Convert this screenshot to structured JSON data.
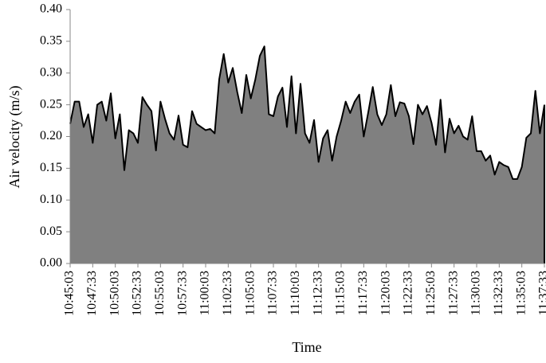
{
  "chart_data": {
    "type": "area",
    "x_label": "Time",
    "y_label": "Air velocity (m/s)",
    "categories": [
      "10:45:03",
      null,
      null,
      null,
      null,
      "10:47:33",
      null,
      null,
      null,
      null,
      "10:50:03",
      null,
      null,
      null,
      null,
      "10:52:33",
      null,
      null,
      null,
      null,
      "10:55:03",
      null,
      null,
      null,
      null,
      "10:57:33",
      null,
      null,
      null,
      null,
      "11:00:03",
      null,
      null,
      null,
      null,
      "11:02:33",
      null,
      null,
      null,
      null,
      "11:05:03",
      null,
      null,
      null,
      null,
      "11:07:33",
      null,
      null,
      null,
      null,
      "11:10:03",
      null,
      null,
      null,
      null,
      "11:12:33",
      null,
      null,
      null,
      null,
      "11:15:03",
      null,
      null,
      null,
      null,
      "11:17:33",
      null,
      null,
      null,
      null,
      "11:20:03",
      null,
      null,
      null,
      null,
      "11:22:33",
      null,
      null,
      null,
      null,
      "11:25:03",
      null,
      null,
      null,
      null,
      "11:27:33",
      null,
      null,
      null,
      null,
      "11:30:03",
      null,
      null,
      null,
      null,
      "11:32:33",
      null,
      null,
      null,
      null,
      "11:35:03",
      null,
      null,
      null,
      null,
      "11:37:33"
    ],
    "values": [
      0.22,
      0.255,
      0.255,
      0.215,
      0.235,
      0.19,
      0.25,
      0.255,
      0.225,
      0.268,
      0.197,
      0.235,
      0.147,
      0.21,
      0.205,
      0.19,
      0.262,
      0.25,
      0.24,
      0.178,
      0.255,
      0.228,
      0.205,
      0.195,
      0.233,
      0.187,
      0.183,
      0.24,
      0.22,
      0.215,
      0.21,
      0.212,
      0.205,
      0.29,
      0.33,
      0.285,
      0.308,
      0.27,
      0.237,
      0.297,
      0.26,
      0.29,
      0.327,
      0.342,
      0.235,
      0.232,
      0.263,
      0.277,
      0.215,
      0.295,
      0.205,
      0.283,
      0.205,
      0.19,
      0.226,
      0.16,
      0.197,
      0.21,
      0.162,
      0.2,
      0.225,
      0.255,
      0.237,
      0.255,
      0.266,
      0.2,
      0.238,
      0.278,
      0.235,
      0.218,
      0.235,
      0.281,
      0.232,
      0.254,
      0.252,
      0.232,
      0.188,
      0.25,
      0.235,
      0.248,
      0.222,
      0.187,
      0.258,
      0.175,
      0.228,
      0.205,
      0.217,
      0.2,
      0.195,
      0.232,
      0.177,
      0.177,
      0.162,
      0.17,
      0.14,
      0.16,
      0.155,
      0.152,
      0.133,
      0.133,
      0.152,
      0.198,
      0.205,
      0.272,
      0.205,
      0.25
    ],
    "fill": "#808080",
    "line_color": "#000000",
    "ylim": [
      0,
      0.4
    ],
    "yticks": [
      {
        "value": 0,
        "label": "0.00"
      },
      {
        "value": 0.05,
        "label": "0.05"
      },
      {
        "value": 0.1,
        "label": "0.10"
      },
      {
        "value": 0.15,
        "label": "0.15"
      },
      {
        "value": 0.2,
        "label": "0.20"
      },
      {
        "value": 0.25,
        "label": "0.25"
      },
      {
        "value": 0.3,
        "label": "0.30"
      },
      {
        "value": 0.35,
        "label": "0.35"
      },
      {
        "value": 0.4,
        "label": "0.40"
      }
    ],
    "grid": false
  }
}
